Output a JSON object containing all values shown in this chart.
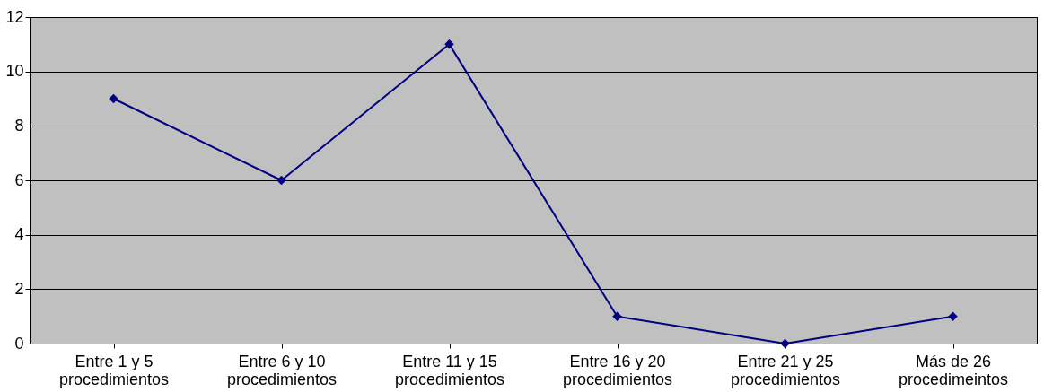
{
  "chart_data": {
    "type": "line",
    "categories": [
      "Entre 1 y 5\nprocedimientos",
      "Entre 6 y 10\nprocedimientos",
      "Entre 11 y 15\nprocedimientos",
      "Entre 16 y 20\nprocedimientos",
      "Entre 21 y 25\nprocedimientos",
      "Más de 26\nprocedimeintos"
    ],
    "series": [
      {
        "color": "#000080",
        "values": [
          9,
          6,
          11,
          1,
          0,
          1
        ]
      }
    ],
    "ylim": [
      0,
      12
    ],
    "yticks": [
      0,
      2,
      4,
      6,
      8,
      10,
      12
    ],
    "grid": "y",
    "marker": "diamond",
    "line_style": "solid"
  }
}
